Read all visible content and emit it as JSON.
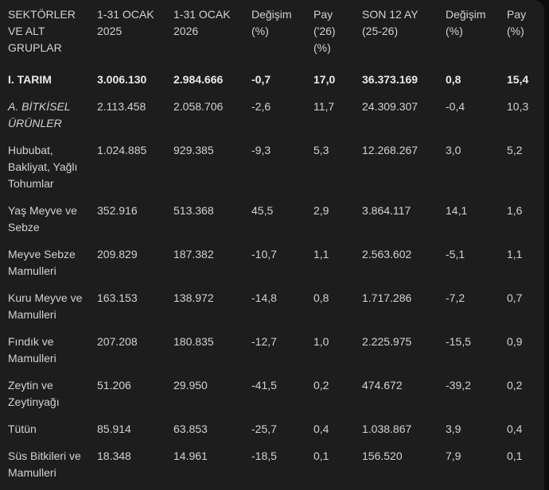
{
  "colors": {
    "page_bg": "#0c0c0c",
    "card_bg": "#1d1d1d",
    "text": "#d2d2d2",
    "text_bold": "#eaeaea"
  },
  "table": {
    "columns": [
      {
        "label": "SEKTÖRLER VE ALT GRUPLAR"
      },
      {
        "label": "1-31 OCAK 2025"
      },
      {
        "label": "1-31 OCAK 2026"
      },
      {
        "label": "Değişim (%)"
      },
      {
        "label": "Pay ('26) (%)"
      },
      {
        "label": "SON 12 AY (25-26)"
      },
      {
        "label": "Değişim (%)"
      },
      {
        "label": "Pay (%)"
      }
    ],
    "rows": [
      {
        "style": "bold",
        "cells": [
          "I. TARIM",
          "3.006.130",
          "2.984.666",
          "-0,7",
          "17,0",
          "36.373.169",
          "0,8",
          "15,4"
        ]
      },
      {
        "style": "italic",
        "cells": [
          "A. BİTKİSEL ÜRÜNLER",
          "2.113.458",
          "2.058.706",
          "-2,6",
          "11,7",
          "24.309.307",
          "-0,4",
          "10,3"
        ]
      },
      {
        "style": "normal",
        "cells": [
          "Hububat, Bakliyat, Yağlı Tohumlar",
          "1.024.885",
          "929.385",
          "-9,3",
          "5,3",
          "12.268.267",
          "3,0",
          "5,2"
        ]
      },
      {
        "style": "normal",
        "cells": [
          "Yaş Meyve ve Sebze",
          "352.916",
          "513.368",
          "45,5",
          "2,9",
          "3.864.117",
          "14,1",
          "1,6"
        ]
      },
      {
        "style": "normal",
        "cells": [
          "Meyve Sebze Mamulleri",
          "209.829",
          "187.382",
          "-10,7",
          "1,1",
          "2.563.602",
          "-5,1",
          "1,1"
        ]
      },
      {
        "style": "normal",
        "cells": [
          "Kuru Meyve ve Mamulleri",
          "163.153",
          "138.972",
          "-14,8",
          "0,8",
          "1.717.286",
          "-7,2",
          "0,7"
        ]
      },
      {
        "style": "normal",
        "cells": [
          "Fındık ve Mamulleri",
          "207.208",
          "180.835",
          "-12,7",
          "1,0",
          "2.225.975",
          "-15,5",
          "0,9"
        ]
      },
      {
        "style": "normal",
        "cells": [
          "Zeytin ve Zeytinyağı",
          "51.206",
          "29.950",
          "-41,5",
          "0,2",
          "474.672",
          "-39,2",
          "0,2"
        ]
      },
      {
        "style": "normal",
        "cells": [
          "Tütün",
          "85.914",
          "63.853",
          "-25,7",
          "0,4",
          "1.038.867",
          "3,9",
          "0,4"
        ]
      },
      {
        "style": "normal",
        "cells": [
          "Süs Bitkileri ve Mamulleri",
          "18.348",
          "14.961",
          "-18,5",
          "0,1",
          "156.520",
          "7,9",
          "0,1"
        ]
      }
    ]
  }
}
